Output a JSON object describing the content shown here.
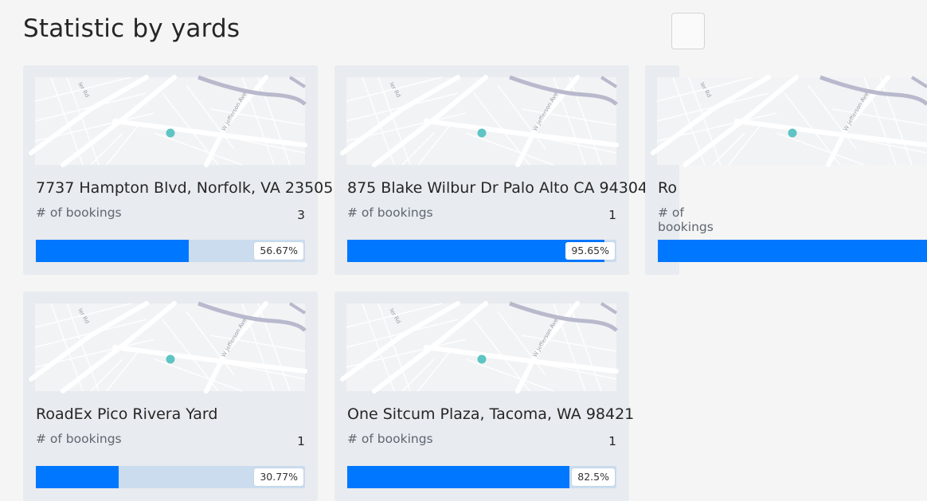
{
  "page": {
    "title": "Statistic by yards"
  },
  "colors": {
    "accent": "#0077ff",
    "track": "#cbdcef",
    "card": "#e8ebef",
    "marker": "#5ec4c4"
  },
  "map": {
    "road_label_1": "ler Rd",
    "road_label_2": "W Jefferson Ave",
    "marker_icon": "location-dot-icon"
  },
  "cards": [
    {
      "title": "7737 Hampton Blvd, Norfolk, VA 23505",
      "bookings_label": "# of bookings",
      "bookings": "3",
      "percent_text": "56.67%",
      "percent": 0.5667
    },
    {
      "title": "875 Blake Wilbur Dr Palo Alto CA 94304",
      "bookings_label": "# of bookings",
      "bookings": "1",
      "percent_text": "95.65%",
      "percent": 0.9565
    },
    {
      "title": "Ro",
      "bookings_label": "# of bookings",
      "bookings": "",
      "percent_text": "",
      "percent": 1.0
    },
    {
      "title": "RoadEx Pico Rivera Yard",
      "bookings_label": "# of bookings",
      "bookings": "1",
      "percent_text": "30.77%",
      "percent": 0.3077
    },
    {
      "title": "One Sitcum Plaza, Tacoma, WA 98421",
      "bookings_label": "# of bookings",
      "bookings": "1",
      "percent_text": "82.5%",
      "percent": 0.825
    }
  ]
}
